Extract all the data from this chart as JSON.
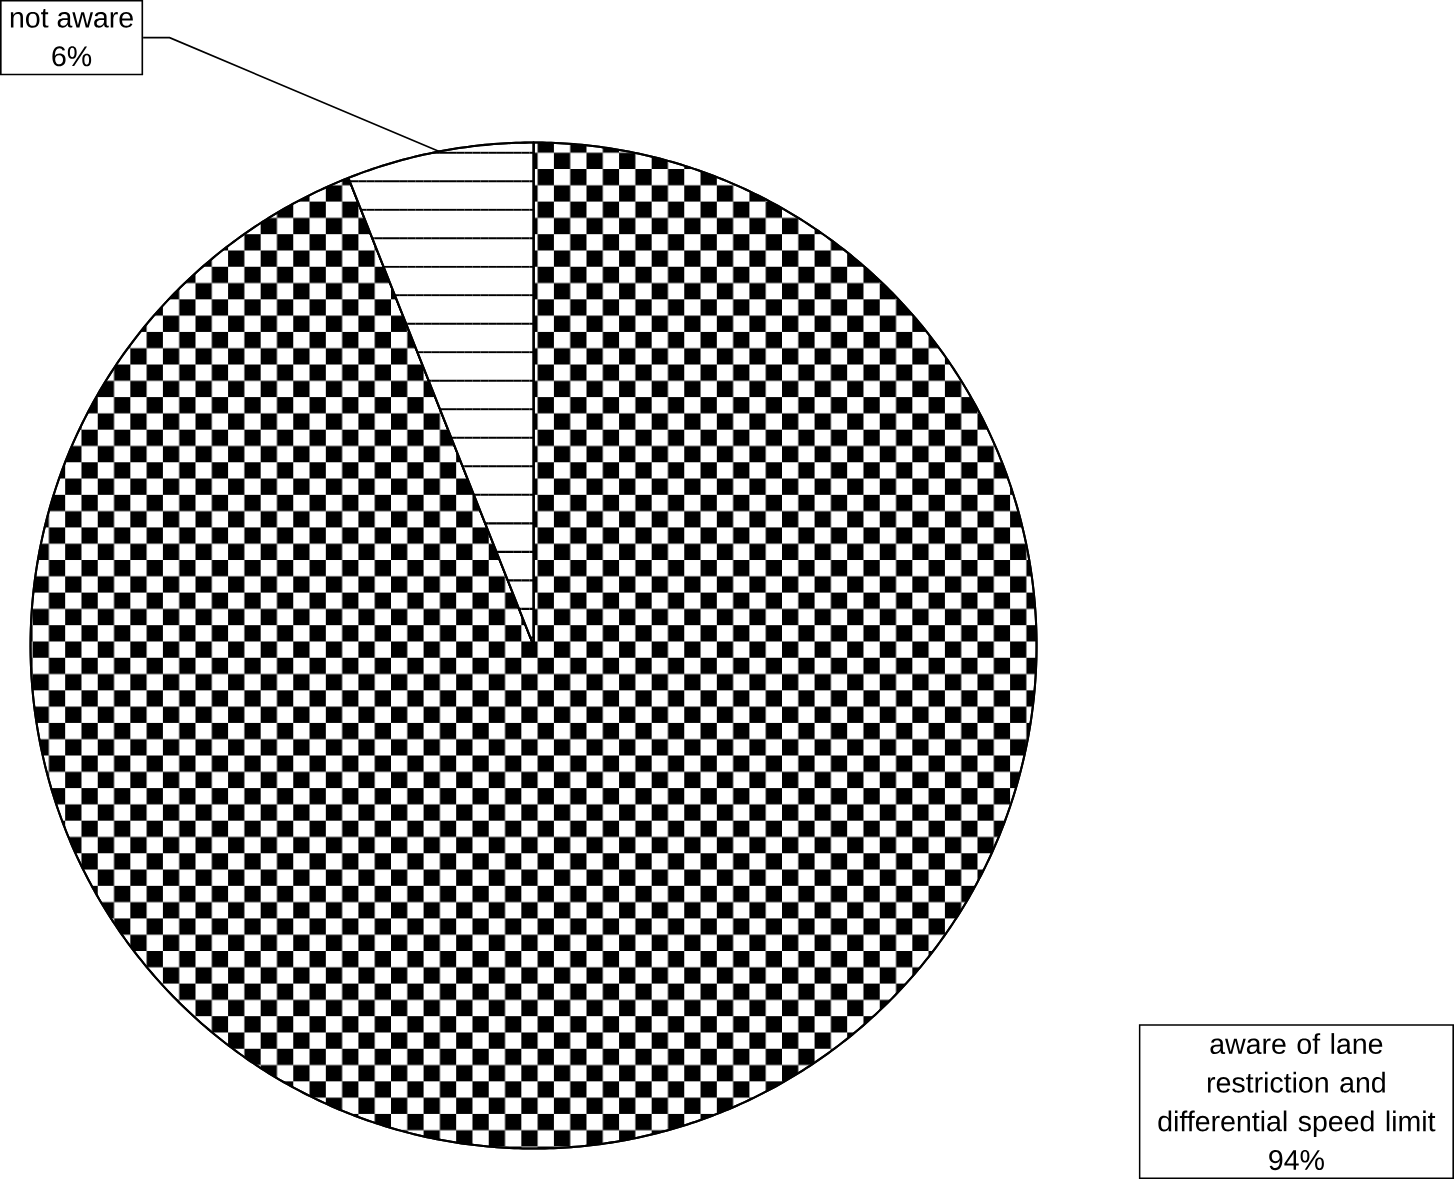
{
  "chart_data": {
    "type": "pie",
    "categories": [
      "aware of lane restriction and differential speed limit",
      "not aware"
    ],
    "values": [
      94,
      6
    ],
    "colors": [
      "#ffffff",
      "#ffffff"
    ],
    "value_labels": [
      "94%",
      "6%"
    ]
  }
}
